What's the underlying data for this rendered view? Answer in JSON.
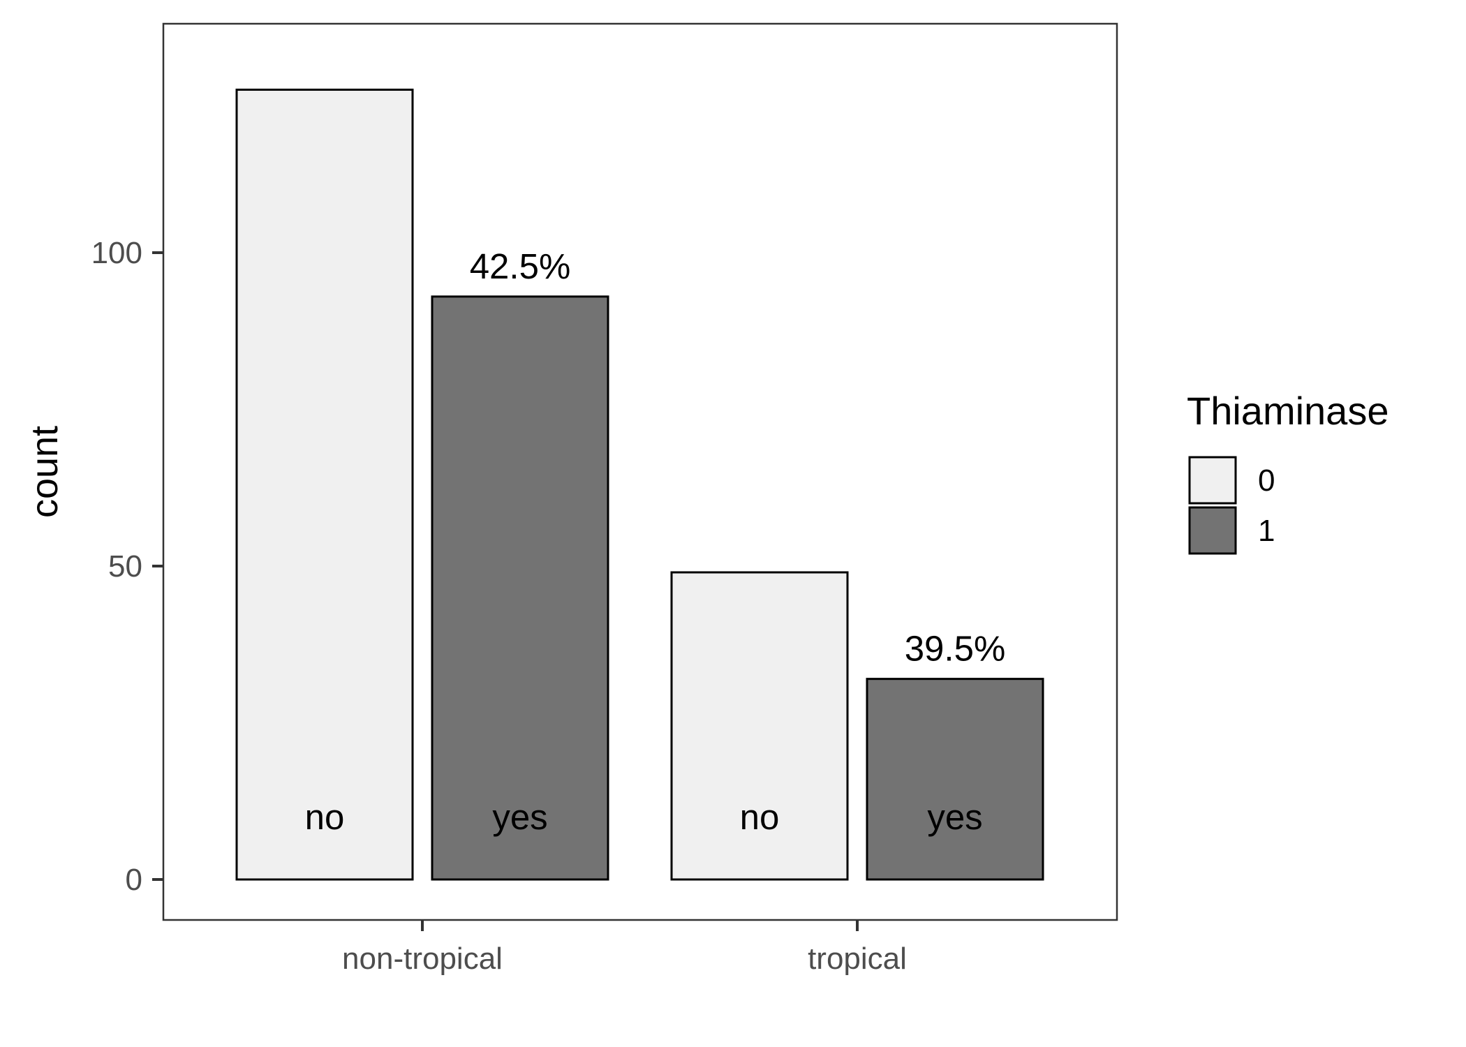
{
  "chart_data": {
    "type": "bar",
    "categories": [
      "non-tropical",
      "tropical"
    ],
    "xlabel": "",
    "ylabel": "count",
    "ylim": [
      0,
      130
    ],
    "yticks": [
      0,
      50,
      100
    ],
    "grid": false,
    "legend": {
      "title": "Thiaminase",
      "placement": "right",
      "entries": [
        {
          "label": "0",
          "color": "#f0f0f0"
        },
        {
          "label": "1",
          "color": "#737373"
        }
      ]
    },
    "series": [
      {
        "name": "0",
        "color": "#f0f0f0",
        "values": [
          126,
          49
        ],
        "labels": [
          "no",
          "no"
        ]
      },
      {
        "name": "1",
        "color": "#737373",
        "values": [
          93,
          32
        ],
        "labels": [
          "yes",
          "yes"
        ]
      }
    ],
    "annotations": [
      {
        "category": "non-tropical",
        "series": "1",
        "text": "42.5%"
      },
      {
        "category": "tropical",
        "series": "1",
        "text": "39.5%"
      }
    ]
  }
}
